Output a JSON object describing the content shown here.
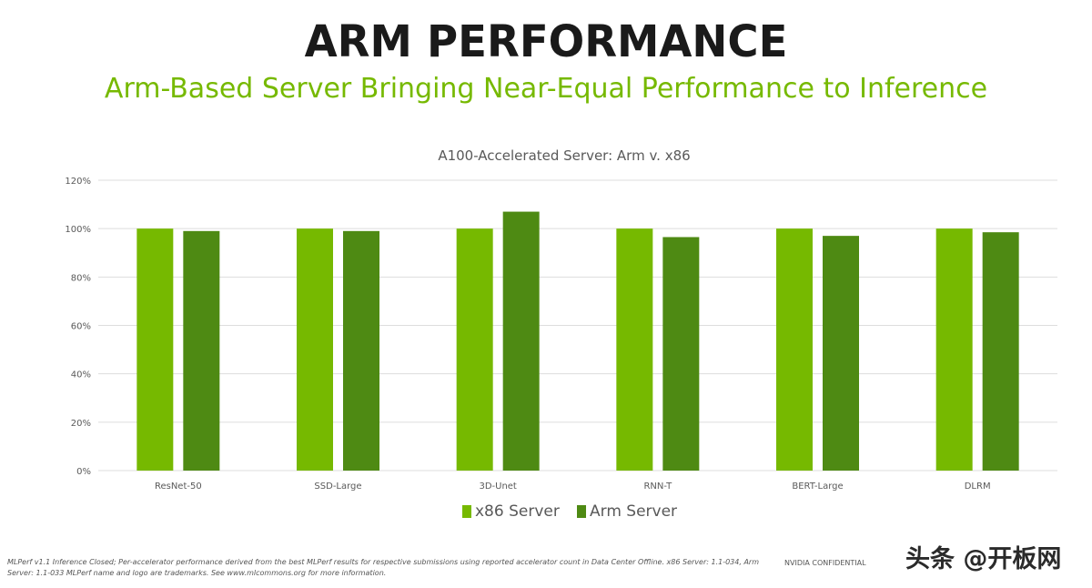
{
  "title": "ARM PERFORMANCE",
  "subtitle": "Arm-Based Server Bringing Near-Equal Performance to Inference",
  "colors": {
    "x86": "#76b900",
    "arm": "#4e8a13",
    "grid": "#dddddd"
  },
  "chart_data": {
    "type": "bar",
    "title": "A100-Accelerated Server: Arm v. x86",
    "categories": [
      "ResNet-50",
      "SSD-Large",
      "3D-Unet",
      "RNN-T",
      "BERT-Large",
      "DLRM"
    ],
    "series": [
      {
        "name": "x86 Server",
        "values": [
          100,
          100,
          100,
          100,
          100,
          100
        ]
      },
      {
        "name": "Arm Server",
        "values": [
          99,
          99,
          107,
          96.5,
          97,
          98.5
        ]
      }
    ],
    "ylim": [
      0,
      120
    ],
    "yticks": [
      "0%",
      "20%",
      "40%",
      "60%",
      "80%",
      "100%",
      "120%"
    ],
    "ytick_values": [
      0,
      20,
      40,
      60,
      80,
      100,
      120
    ],
    "grid": true,
    "legend": "bottom-center"
  },
  "footnote": "MLPerf v1.1 Inference Closed; Per-accelerator performance derived from the best MLPerf results for respective submissions using reported accelerator count in Data Center Offline. x86 Server: 1.1-034, Arm Server: 1.1-033 MLPerf name and logo are trademarks. See www.mlcommons.org for more information.",
  "footer_right": "NVIDIA CONFIDENTIAL",
  "watermark": "头条 @开板网"
}
